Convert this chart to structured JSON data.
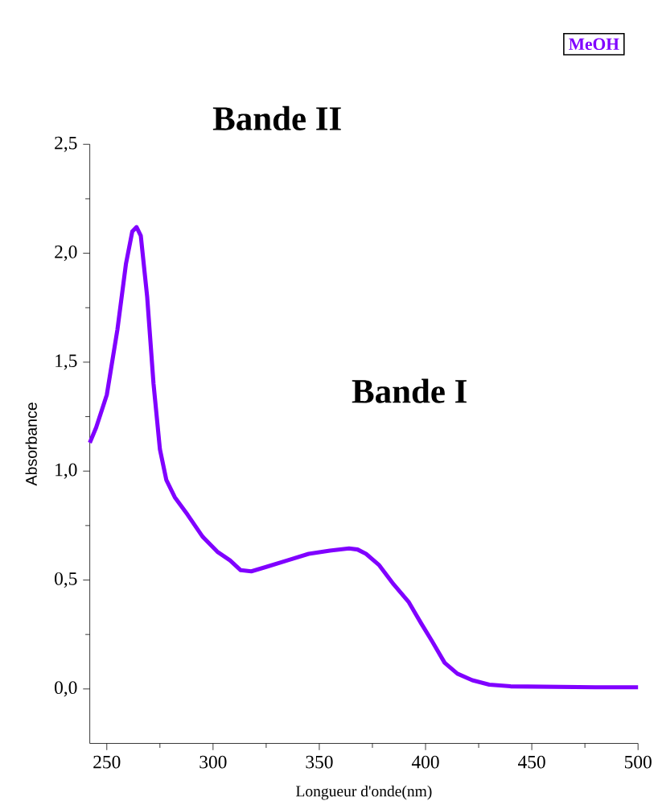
{
  "chart_data": {
    "type": "line",
    "xlabel": "Longueur d'onde(nm)",
    "ylabel": "Absorbance",
    "xlim": [
      242,
      500
    ],
    "ylim": [
      -0.25,
      2.5
    ],
    "xticks": [
      250,
      300,
      350,
      400,
      450,
      500
    ],
    "yticks": [
      {
        "value": 0,
        "label": "0,0"
      },
      {
        "value": 0.5,
        "label": "0,5"
      },
      {
        "value": 1,
        "label": "1,0"
      },
      {
        "value": 1.5,
        "label": "1,5"
      },
      {
        "value": 2,
        "label": "2,0"
      },
      {
        "value": 2.5,
        "label": "2,5"
      }
    ],
    "legend": "top right",
    "grid": false,
    "marker": "none",
    "line_style": "solid",
    "annotations": [
      "Bande II",
      "Bande I"
    ],
    "series": [
      {
        "name": "MeOH",
        "color": "#8000ff",
        "x": [
          242,
          245,
          250,
          255,
          259,
          262,
          264,
          266,
          269,
          272,
          275,
          278,
          282,
          288,
          295,
          302,
          308,
          313,
          318,
          325,
          335,
          345,
          355,
          364,
          368,
          372,
          378,
          385,
          392,
          398,
          403,
          409,
          415,
          422,
          430,
          440,
          460,
          480,
          500
        ],
        "values": [
          1.13,
          1.2,
          1.35,
          1.65,
          1.95,
          2.1,
          2.12,
          2.08,
          1.8,
          1.4,
          1.1,
          0.96,
          0.88,
          0.8,
          0.7,
          0.63,
          0.59,
          0.545,
          0.54,
          0.56,
          0.59,
          0.62,
          0.635,
          0.645,
          0.64,
          0.62,
          0.57,
          0.48,
          0.4,
          0.3,
          0.22,
          0.12,
          0.07,
          0.04,
          0.02,
          0.012,
          0.01,
          0.008,
          0.008
        ]
      }
    ]
  }
}
